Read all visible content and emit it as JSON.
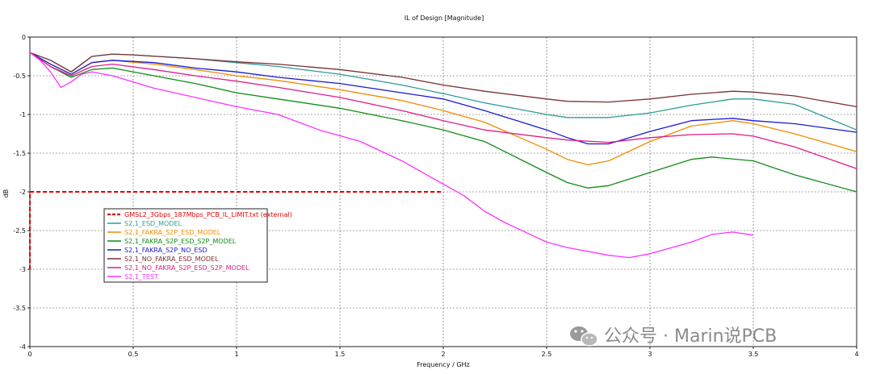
{
  "chart_data": {
    "type": "line",
    "title": "IL of Design [Magnitude]",
    "xlabel": "Frequency / GHz",
    "ylabel": "dB",
    "xlim": [
      0,
      4
    ],
    "ylim": [
      -4,
      0
    ],
    "xticks": [
      "0",
      "0.5",
      "1",
      "1.5",
      "2",
      "2.5",
      "3",
      "3.5",
      "4"
    ],
    "yticks": [
      "0",
      "-0.5",
      "-1",
      "-1.5",
      "-2",
      "-2.5",
      "-3",
      "-3.5",
      "-4"
    ],
    "grid": true,
    "legend_position": "center-left",
    "limit": {
      "name": "GMSL2_3Gbps_187Mbps_PCB_IL_LIMIT.txt (external)",
      "color": "#e60000",
      "x": [
        0,
        0,
        2
      ],
      "y": [
        -3,
        -2,
        -2
      ]
    },
    "series": [
      {
        "name": "S2,1_ESD_MODEL",
        "color": "#2a9d9a",
        "x": [
          0,
          0.1,
          0.2,
          0.3,
          0.4,
          0.5,
          0.8,
          1.0,
          1.2,
          1.5,
          1.8,
          2.0,
          2.2,
          2.5,
          2.6,
          2.8,
          3.0,
          3.2,
          3.4,
          3.5,
          3.7,
          4.0
        ],
        "y": [
          -0.2,
          -0.3,
          -0.45,
          -0.25,
          -0.22,
          -0.23,
          -0.28,
          -0.33,
          -0.38,
          -0.48,
          -0.62,
          -0.73,
          -0.85,
          -1.0,
          -1.04,
          -1.04,
          -0.98,
          -0.88,
          -0.8,
          -0.8,
          -0.87,
          -1.2
        ]
      },
      {
        "name": "S2,1_FAKRA_S2P_ESD_MODEL",
        "color": "#f08c00",
        "x": [
          0,
          0.1,
          0.2,
          0.3,
          0.4,
          0.6,
          0.8,
          1.0,
          1.2,
          1.5,
          1.8,
          2.0,
          2.2,
          2.5,
          2.6,
          2.7,
          2.8,
          3.0,
          3.2,
          3.4,
          3.5,
          3.7,
          4.0
        ],
        "y": [
          -0.2,
          -0.35,
          -0.48,
          -0.33,
          -0.3,
          -0.35,
          -0.42,
          -0.5,
          -0.56,
          -0.68,
          -0.82,
          -0.95,
          -1.1,
          -1.45,
          -1.58,
          -1.65,
          -1.6,
          -1.35,
          -1.15,
          -1.08,
          -1.12,
          -1.25,
          -1.48
        ]
      },
      {
        "name": "S2,1_FAKRA_S2P_ESD_S2P_MODEL",
        "color": "#128c12",
        "x": [
          0,
          0.1,
          0.2,
          0.3,
          0.4,
          0.6,
          0.8,
          1.0,
          1.2,
          1.5,
          1.8,
          2.0,
          2.2,
          2.5,
          2.6,
          2.7,
          2.8,
          3.0,
          3.2,
          3.3,
          3.5,
          3.7,
          4.0
        ],
        "y": [
          -0.2,
          -0.38,
          -0.52,
          -0.42,
          -0.4,
          -0.5,
          -0.6,
          -0.72,
          -0.8,
          -0.92,
          -1.08,
          -1.2,
          -1.35,
          -1.75,
          -1.88,
          -1.95,
          -1.92,
          -1.75,
          -1.58,
          -1.55,
          -1.6,
          -1.78,
          -2.0
        ]
      },
      {
        "name": "S2,1_FAKRA_S2P_NO_ESD",
        "color": "#1a1ad0",
        "x": [
          0,
          0.1,
          0.2,
          0.3,
          0.4,
          0.6,
          0.8,
          1.0,
          1.2,
          1.5,
          1.8,
          2.0,
          2.2,
          2.5,
          2.6,
          2.7,
          2.8,
          3.0,
          3.2,
          3.4,
          3.5,
          3.7,
          4.0
        ],
        "y": [
          -0.2,
          -0.35,
          -0.48,
          -0.33,
          -0.3,
          -0.33,
          -0.4,
          -0.45,
          -0.52,
          -0.6,
          -0.72,
          -0.8,
          -0.95,
          -1.2,
          -1.3,
          -1.38,
          -1.38,
          -1.22,
          -1.08,
          -1.05,
          -1.08,
          -1.12,
          -1.23
        ]
      },
      {
        "name": "S2,1_NO_FAKRA_ESD_MODEL",
        "color": "#7a3030",
        "x": [
          0,
          0.1,
          0.2,
          0.3,
          0.4,
          0.5,
          0.8,
          1.0,
          1.2,
          1.5,
          1.8,
          2.0,
          2.2,
          2.5,
          2.6,
          2.8,
          3.0,
          3.2,
          3.4,
          3.5,
          3.7,
          4.0
        ],
        "y": [
          -0.2,
          -0.3,
          -0.45,
          -0.25,
          -0.22,
          -0.23,
          -0.28,
          -0.32,
          -0.35,
          -0.42,
          -0.52,
          -0.62,
          -0.7,
          -0.8,
          -0.83,
          -0.84,
          -0.8,
          -0.74,
          -0.7,
          -0.71,
          -0.76,
          -0.9
        ]
      },
      {
        "name": "S2,1_NO_FAKRA_S2P_ESD_S2P_MODEL",
        "color": "#e01c8c",
        "x": [
          0,
          0.1,
          0.2,
          0.3,
          0.4,
          0.6,
          0.8,
          1.0,
          1.2,
          1.5,
          1.8,
          2.0,
          2.2,
          2.5,
          2.6,
          2.8,
          3.0,
          3.2,
          3.4,
          3.5,
          3.7,
          4.0
        ],
        "y": [
          -0.2,
          -0.38,
          -0.5,
          -0.38,
          -0.35,
          -0.42,
          -0.5,
          -0.57,
          -0.65,
          -0.78,
          -0.95,
          -1.08,
          -1.2,
          -1.3,
          -1.33,
          -1.36,
          -1.3,
          -1.26,
          -1.25,
          -1.28,
          -1.42,
          -1.7
        ]
      },
      {
        "name": "S2,1_TEST",
        "color": "#ff30ff",
        "x": [
          0,
          0.05,
          0.1,
          0.15,
          0.2,
          0.25,
          0.3,
          0.4,
          0.6,
          0.8,
          1.0,
          1.2,
          1.4,
          1.6,
          1.8,
          2.0,
          2.1,
          2.2,
          2.3,
          2.5,
          2.6,
          2.8,
          2.9,
          3.0,
          3.2,
          3.3,
          3.4,
          3.5
        ],
        "y": [
          -0.2,
          -0.3,
          -0.45,
          -0.65,
          -0.58,
          -0.48,
          -0.45,
          -0.5,
          -0.66,
          -0.78,
          -0.9,
          -1.0,
          -1.2,
          -1.35,
          -1.6,
          -1.9,
          -2.05,
          -2.25,
          -2.4,
          -2.65,
          -2.72,
          -2.82,
          -2.85,
          -2.8,
          -2.65,
          -2.55,
          -2.52,
          -2.56
        ]
      }
    ]
  },
  "watermark": {
    "icon": "wechat-icon",
    "text": "公众号 · Marin说PCB"
  }
}
